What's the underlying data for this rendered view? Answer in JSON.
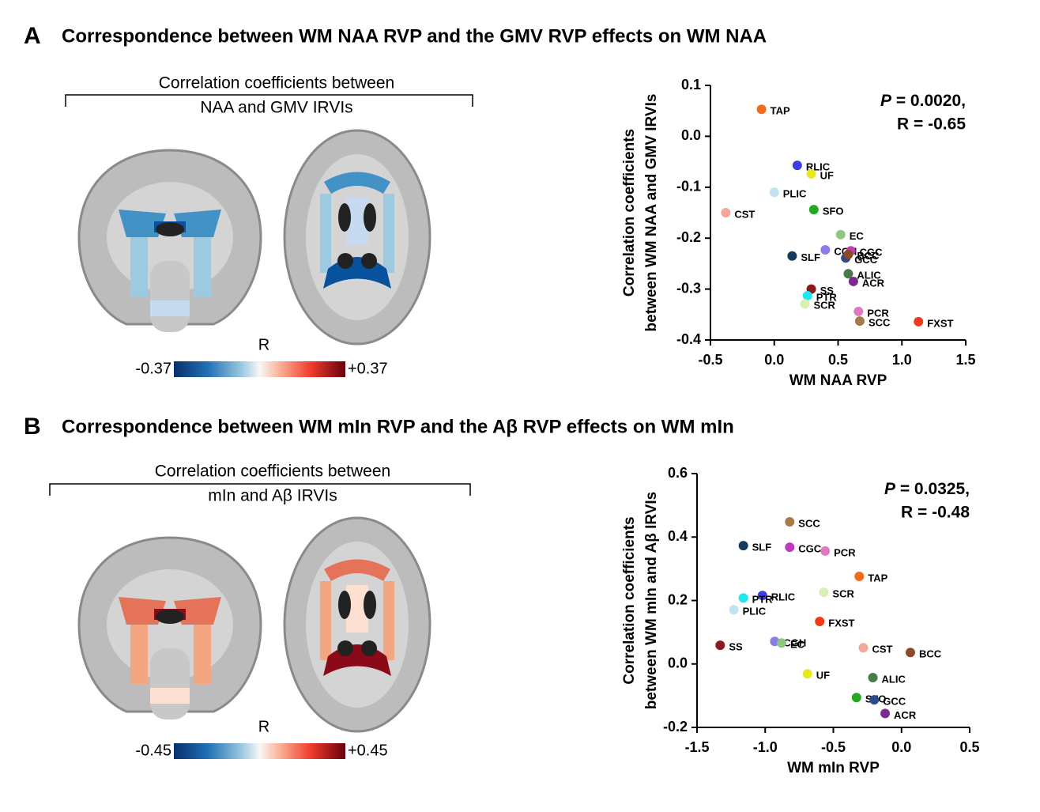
{
  "chart_data": [
    {
      "type": "scatter",
      "panel": "A",
      "title": "Correspondence between WM NAA RVP and the GMV RVP effects on WM NAA",
      "brain_caption": [
        "Correlation coefficients between",
        "NAA and GMV IRVIs"
      ],
      "colorbar": {
        "title": "R",
        "min": -0.37,
        "max": {
          "value": 0.37,
          "label": "+0.37"
        }
      },
      "stats": {
        "p_symbol": "P",
        "p_text": " = 0.0020,",
        "r_text": "R = -0.65"
      },
      "xlabel": "WM NAA RVP",
      "ylabel": [
        "Correlation coefficients",
        "between WM NAA and GMV IRVIs"
      ],
      "xlim": [
        -0.5,
        1.5
      ],
      "ylim": [
        -0.4,
        0.1
      ],
      "xticks": [
        -0.5,
        {
          "value": 0,
          "label": "0.0"
        },
        0.5,
        {
          "value": 1,
          "label": "1.0"
        },
        1.5
      ],
      "yticks": [
        0.1,
        {
          "value": 0,
          "label": "0.0"
        },
        -0.1,
        -0.2,
        -0.3,
        -0.4
      ],
      "labels": [
        "TAP",
        "RLIC",
        "UF",
        "PLIC",
        "CST",
        "SFO",
        "EC",
        "CGH",
        "CGC",
        "GCC",
        "BCC",
        "SLF",
        "ALIC",
        "ACR",
        "SS",
        "PTR",
        "SCR",
        "PCR",
        "SCC",
        "FXST"
      ],
      "x": [
        -0.1,
        0.18,
        0.29,
        0.0,
        -0.38,
        0.31,
        0.52,
        0.4,
        0.6,
        0.56,
        0.58,
        0.14,
        0.58,
        0.62,
        0.29,
        0.26,
        0.24,
        0.66,
        0.67,
        1.13
      ],
      "y": [
        0.053,
        -0.057,
        -0.074,
        -0.11,
        -0.15,
        -0.144,
        -0.193,
        -0.223,
        -0.225,
        -0.239,
        -0.232,
        -0.235,
        -0.27,
        -0.285,
        -0.3,
        -0.313,
        -0.329,
        -0.344,
        -0.363,
        -0.364
      ],
      "colors": [
        "#f26b1d",
        "#3c3ee0",
        "#e8e81a",
        "#bfe3f0",
        "#f4a79a",
        "#22aa22",
        "#8cc97e",
        "#8a7de8",
        "#c03cbf",
        "#2a4a8a",
        "#8b4a2a",
        "#153a5c",
        "#4a7a4a",
        "#7b2a8f",
        "#8b1a1a",
        "#1de8f0",
        "#d8f0b0",
        "#e07ac0",
        "#a87a4a",
        "#f23a1a"
      ]
    },
    {
      "type": "scatter",
      "panel": "B",
      "title": "Correspondence between WM mIn RVP and the Aβ RVP effects on WM mIn",
      "brain_caption": [
        "Correlation coefficients between",
        "mIn and Aβ IRVIs"
      ],
      "colorbar": {
        "title": "R",
        "min": -0.45,
        "max": {
          "value": 0.45,
          "label": "+0.45"
        }
      },
      "stats": {
        "p_symbol": "P",
        "p_text": " = 0.0325,",
        "r_text": "R = -0.48"
      },
      "xlabel": "WM mIn RVP",
      "ylabel": [
        "Correlation coefficients",
        "between WM mIn and Aβ IRVIs"
      ],
      "xlim": [
        -1.5,
        0.5
      ],
      "ylim": [
        -0.2,
        0.6
      ],
      "xticks": [
        -1.5,
        {
          "value": -1,
          "label": "-1.0"
        },
        -0.5,
        {
          "value": 0,
          "label": "0.0"
        },
        0.5
      ],
      "yticks": [
        0.6,
        0.4,
        0.2,
        {
          "value": 0,
          "label": "0.0"
        },
        -0.2
      ],
      "labels": [
        "SCC",
        "SLF",
        "CGC",
        "PCR",
        "TAP",
        "SCR",
        "RLIC",
        "PTR",
        "PLIC",
        "FXST",
        "SS",
        "CGH",
        "EC",
        "CST",
        "BCC",
        "UF",
        "ALIC",
        "SFO",
        "GCC",
        "ACR"
      ],
      "x": [
        -0.82,
        -1.16,
        -0.82,
        -0.56,
        -0.31,
        -0.57,
        -1.02,
        -1.16,
        -1.23,
        -0.6,
        -1.33,
        -0.93,
        -0.88,
        -0.28,
        0.065,
        -0.69,
        -0.21,
        -0.33,
        -0.2,
        -0.12
      ],
      "y": [
        0.448,
        0.373,
        0.368,
        0.356,
        0.276,
        0.226,
        0.216,
        0.208,
        0.171,
        0.134,
        0.059,
        0.071,
        0.066,
        0.051,
        0.036,
        -0.031,
        -0.043,
        -0.106,
        -0.113,
        -0.156
      ],
      "colors": [
        "#a87a4a",
        "#153a5c",
        "#c03cbf",
        "#e07ac0",
        "#f26b1d",
        "#d8f0b0",
        "#3c3ee0",
        "#1de8f0",
        "#bfe3f0",
        "#f23a1a",
        "#8b1a1a",
        "#8a7de8",
        "#8cc97e",
        "#f4a79a",
        "#8b4a2a",
        "#e8e81a",
        "#4a7a4a",
        "#22aa22",
        "#2a4a8a",
        "#7b2a8f"
      ]
    }
  ]
}
